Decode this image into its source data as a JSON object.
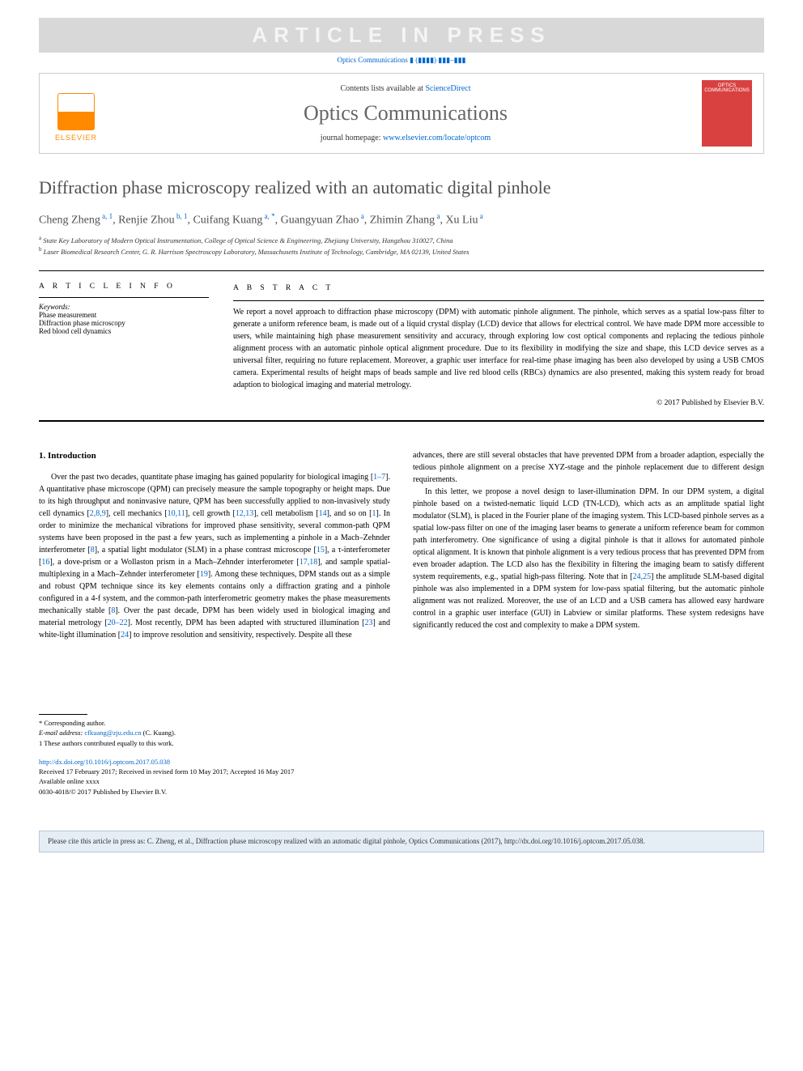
{
  "banner": {
    "text": "ARTICLE IN PRESS",
    "bg": "#d8d8d8",
    "fg": "#f5f5f5"
  },
  "top_ref": "Optics Communications ▮ (▮▮▮▮) ▮▮▮–▮▮▮",
  "header": {
    "contents_prefix": "Contents lists available at ",
    "contents_link": "ScienceDirect",
    "journal": "Optics Communications",
    "homepage_prefix": "journal homepage: ",
    "homepage_link": "www.elsevier.com/locate/optcom",
    "elsevier_word": "ELSEVIER",
    "cover_label": "OPTICS COMMUNICATIONS"
  },
  "title": "Diffraction phase microscopy realized with an automatic digital pinhole",
  "authors_html": "Cheng Zheng<sup> a, 1</sup>, Renjie Zhou<sup> b, 1</sup>, Cuifang Kuang<sup> a, *</sup>, Guangyuan Zhao<sup> a</sup>, Zhimin Zhang<sup> a</sup>, Xu Liu<sup> a</sup>",
  "affiliations": [
    {
      "sup": "a",
      "text": "State Key Laboratory of Modern Optical Instrumentation, College of Optical Science & Engineering, Zhejiang University, Hangzhou 310027, China"
    },
    {
      "sup": "b",
      "text": "Laser Biomedical Research Center, G. R. Harrison Spectroscopy Laboratory, Massachusetts Institute of Technology, Cambridge, MA 02139, United States"
    }
  ],
  "article_info": {
    "heading": "A R T I C L E   I N F O",
    "kw_label": "Keywords:",
    "keywords": [
      "Phase measurement",
      "Diffraction phase microscopy",
      "Red blood cell dynamics"
    ]
  },
  "abstract": {
    "heading": "A B S T R A C T",
    "text": "We report a novel approach to diffraction phase microscopy (DPM) with automatic pinhole alignment. The pinhole, which serves as a spatial low-pass filter to generate a uniform reference beam, is made out of a liquid crystal display (LCD) device that allows for electrical control. We have made DPM more accessible to users, while maintaining high phase measurement sensitivity and accuracy, through exploring low cost optical components and replacing the tedious pinhole alignment process with an automatic pinhole optical alignment procedure. Due to its flexibility in modifying the size and shape, this LCD device serves as a universal filter, requiring no future replacement. Moreover, a graphic user interface for real-time phase imaging has been also developed by using a USB CMOS camera. Experimental results of height maps of beads sample and live red blood cells (RBCs) dynamics are also presented, making this system ready for broad adaption to biological imaging and material metrology.",
    "copyright": "© 2017 Published by Elsevier B.V."
  },
  "intro": {
    "heading": "1. Introduction",
    "p1": "Over the past two decades, quantitate phase imaging has gained popularity for biological imaging [1–7]. A quantitative phase microscope (QPM) can precisely measure the sample topography or height maps. Due to its high throughput and noninvasive nature, QPM has been successfully applied to non-invasively study cell dynamics [2,8,9], cell mechanics [10,11], cell growth [12,13], cell metabolism [14], and so on [1]. In order to minimize the mechanical vibrations for improved phase sensitivity, several common-path QPM systems have been proposed in the past a few years, such as implementing a pinhole in a Mach–Zehnder interferometer [8], a spatial light modulator (SLM) in a phase contrast microscope [15], a τ-interferometer [16], a dove-prism or a Wollaston prism in a Mach–Zehnder interferometer [17,18], and sample spatial-multiplexing in a Mach–Zehnder interferometer [19]. Among these techniques, DPM stands out as a simple and robust QPM technique since its key elements contains only a diffraction grating and a pinhole configured in a 4-f system, and the common-path interferometric geometry makes the phase measurements mechanically stable [8]. Over the past decade, DPM has been widely used in biological imaging and material metrology [20–22]. Most recently, DPM has been adapted with structured illumination [23] and white-light illumination [24] to improve resolution and sensitivity, respectively. Despite all these",
    "p2": "advances, there are still several obstacles that have prevented DPM from a broader adaption, especially the tedious pinhole alignment on a precise XYZ-stage and the pinhole replacement due to different design requirements.",
    "p3": "In this letter, we propose a novel design to laser-illumination DPM. In our DPM system, a digital pinhole based on a twisted-nematic liquid LCD (TN-LCD), which acts as an amplitude spatial light modulator (SLM), is placed in the Fourier plane of the imaging system. This LCD-based pinhole serves as a spatial low-pass filter on one of the imaging laser beams to generate a uniform reference beam for common path interferometry. One significance of using a digital pinhole is that it allows for automated pinhole optical alignment. It is known that pinhole alignment is a very tedious process that has prevented DPM from even broader adaption. The LCD also has the flexibility in filtering the imaging beam to satisfy different system requirements, e.g., spatial high-pass filtering. Note that in [24,25] the amplitude SLM-based digital pinhole was also implemented in a DPM system for low-pass spatial filtering, but the automatic pinhole alignment was not realized. Moreover, the use of an LCD and a USB camera has allowed easy hardware control in a graphic user interface (GUI) in Labview or similar platforms. These system redesigns have significantly reduced the cost and complexity to make a DPM system."
  },
  "footnotes": {
    "corresponding": "* Corresponding author.",
    "email_label": "E-mail address: ",
    "email": "cfkuang@zju.edu.cn",
    "email_name": " (C. Kuang).",
    "equal": "1 These authors contributed equally to this work."
  },
  "pub": {
    "doi": "http://dx.doi.org/10.1016/j.optcom.2017.05.038",
    "received": "Received 17 February 2017; Received in revised form 10 May 2017; Accepted 16 May 2017",
    "avail": "Available online xxxx",
    "issn": "0030-4018/© 2017 Published by Elsevier B.V."
  },
  "cite_box": "Please cite this article in press as: C. Zheng, et al., Diffraction phase microscopy realized with an automatic digital pinhole, Optics Communications (2017), http://dx.doi.org/10.1016/j.optcom.2017.05.038."
}
